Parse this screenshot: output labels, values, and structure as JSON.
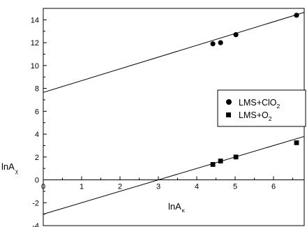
{
  "chart_data": {
    "type": "scatter",
    "xlabel": {
      "main": "lnA",
      "sub": "κ"
    },
    "ylabel": {
      "main": "lnA",
      "sub": "χ"
    },
    "xlim": [
      0,
      6.8
    ],
    "ylim": [
      -4,
      15
    ],
    "x_ticks": [
      0,
      1,
      2,
      3,
      4,
      5,
      6
    ],
    "y_ticks": [
      -4,
      -2,
      0,
      2,
      4,
      6,
      8,
      10,
      12,
      14
    ],
    "grid": false,
    "legend_position": "right",
    "series": [
      {
        "name": "LMS+ClO",
        "name_sub": "2",
        "marker": "circle",
        "color": "#000000",
        "points": [
          {
            "x": 4.42,
            "y": 11.9
          },
          {
            "x": 4.62,
            "y": 12.0
          },
          {
            "x": 5.02,
            "y": 12.7
          },
          {
            "x": 6.6,
            "y": 14.4
          }
        ],
        "fit_line": {
          "x0": 0,
          "y0": 7.65,
          "x1": 6.8,
          "y1": 14.65
        }
      },
      {
        "name": "LMS+O",
        "name_sub": "2",
        "marker": "square",
        "color": "#000000",
        "points": [
          {
            "x": 4.42,
            "y": 1.35
          },
          {
            "x": 4.62,
            "y": 1.65
          },
          {
            "x": 5.02,
            "y": 2.0
          },
          {
            "x": 6.6,
            "y": 3.25
          }
        ],
        "fit_line": {
          "x0": 0,
          "y0": -3.0,
          "x1": 6.8,
          "y1": 3.8
        }
      }
    ]
  }
}
